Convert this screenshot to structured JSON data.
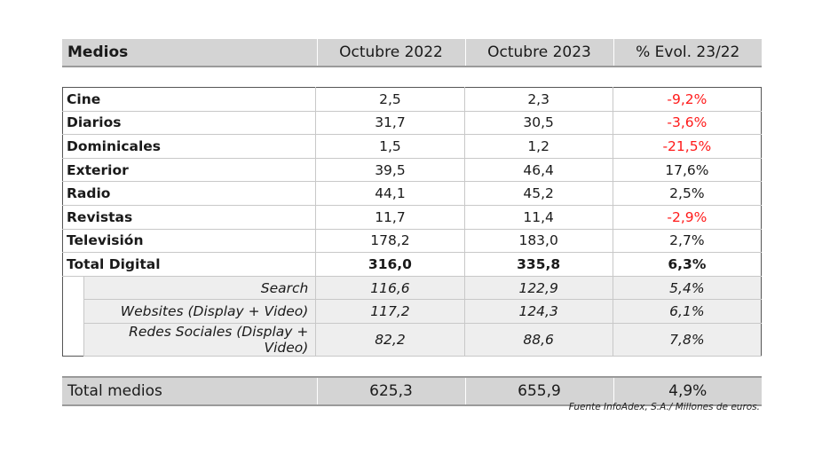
{
  "header": [
    "Medios",
    "Octubre 2022",
    "Octubre 2023",
    "% Evol. 23/22"
  ],
  "rows": [
    {
      "medio": "Cine",
      "v2022": "2,5",
      "v2023": "2,3",
      "evol": "-9,2%",
      "negative": true
    },
    {
      "medio": "Diarios",
      "v2022": "31,7",
      "v2023": "30,5",
      "evol": "-3,6%",
      "negative": true
    },
    {
      "medio": "Dominicales",
      "v2022": "1,5",
      "v2023": "1,2",
      "evol": "-21,5%",
      "negative": true
    },
    {
      "medio": "Exterior",
      "v2022": "39,5",
      "v2023": "46,4",
      "evol": "17,6%",
      "negative": false
    },
    {
      "medio": "Radio",
      "v2022": "44,1",
      "v2023": "45,2",
      "evol": "2,5%",
      "negative": false
    },
    {
      "medio": "Revistas",
      "v2022": "11,7",
      "v2023": "11,4",
      "evol": "-2,9%",
      "negative": true
    },
    {
      "medio": "Televisión",
      "v2022": "178,2",
      "v2023": "183,0",
      "evol": "2,7%",
      "negative": false
    },
    {
      "medio": "Total Digital",
      "v2022": "316,0",
      "v2023": "335,8",
      "evol": "6,3%",
      "negative": false
    }
  ],
  "digital_breakdown": [
    {
      "medio": "Search",
      "v2022": "116,6",
      "v2023": "122,9",
      "evol": "5,4%"
    },
    {
      "medio": "Websites (Display + Video)",
      "v2022": "117,2",
      "v2023": "124,3",
      "evol": "6,1%"
    },
    {
      "medio": "Redes Sociales (Display + Video)",
      "v2022": "82,2",
      "v2023": "88,6",
      "evol": "7,8%"
    }
  ],
  "total": {
    "medio": "Total medios",
    "v2022": "625,3",
    "v2023": "655,9",
    "evol": "4,9%"
  },
  "source": "Fuente InfoAdex, S.A./ Millones de euros.",
  "colors": {
    "negative": "#ff1a1a",
    "header_bg": "#d4d4d4",
    "subrow_bg": "#eeeeee"
  }
}
